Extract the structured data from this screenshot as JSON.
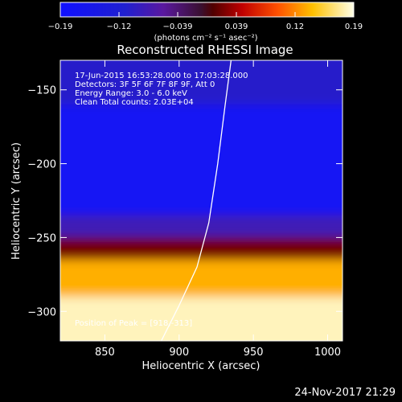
{
  "chart_data": {
    "type": "heatmap",
    "title": "Reconstructed RHESSI Image",
    "xlabel": "Heliocentric X (arcsec)",
    "ylabel": "Heliocentric Y (arcsec)",
    "xlim": [
      820,
      1010
    ],
    "ylim": [
      -320,
      -130
    ],
    "x_ticks": [
      850,
      900,
      950,
      1000
    ],
    "y_ticks": [
      -150,
      -200,
      -250,
      -300
    ],
    "colorbar": {
      "ticks": [
        "-0.19",
        "-0.12",
        "-0.039",
        "0.039",
        "0.12",
        "0.19"
      ],
      "range": [
        -0.19,
        0.19
      ],
      "unit_label": "(photons cm⁻² s⁻¹ asec⁻²)"
    },
    "annotations": [
      "17-Jun-2015 16:53:28.000 to 17:03:28.000",
      "Detectors: 3F 5F 6F 7F 8F 9F, Att 0",
      "Energy Range: 3.0 - 6.0 keV",
      "Clean      Total counts: 2.03E+04"
    ],
    "peak_label": "Position of Peak = [918,-313]",
    "limb_curve": [
      [
        888,
        -320
      ],
      [
        900,
        -296
      ],
      [
        912,
        -270
      ],
      [
        920,
        -240
      ],
      [
        926,
        -200
      ],
      [
        931,
        -160
      ],
      [
        935,
        -130
      ]
    ],
    "intensity_bands": [
      {
        "y_from": -130,
        "y_to": -160,
        "level": -0.1
      },
      {
        "y_from": -160,
        "y_to": -235,
        "level": -0.17
      },
      {
        "y_from": -235,
        "y_to": -250,
        "level": -0.08
      },
      {
        "y_from": -250,
        "y_to": -265,
        "level": 0.02
      },
      {
        "y_from": -265,
        "y_to": -290,
        "level": 0.13
      },
      {
        "y_from": -290,
        "y_to": -320,
        "level": 0.18
      }
    ]
  },
  "footer": {
    "timestamp": "24-Nov-2017 21:29"
  }
}
